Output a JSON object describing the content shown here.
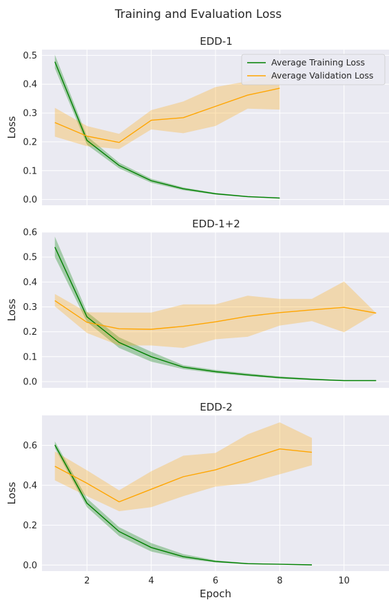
{
  "figure": {
    "title": "Training and Evaluation Loss",
    "xlabel": "Epoch"
  },
  "legend": {
    "location": "top-right of first panel",
    "entries": [
      "Average Training Loss",
      "Average Validation Loss"
    ]
  },
  "colors": {
    "background": "#eaeaf2",
    "grid": "#ffffff",
    "training": "#008000",
    "validation": "#ffa500"
  },
  "chart_data": [
    {
      "type": "line",
      "title": "EDD-1",
      "xlabel": "",
      "ylabel": "Loss",
      "xlim": [
        0.6,
        11.4
      ],
      "ylim": [
        -0.02,
        0.52
      ],
      "xticks": [
        2,
        4,
        6,
        8,
        10
      ],
      "xtick_labels_shown": false,
      "yticks": [
        0.0,
        0.1,
        0.2,
        0.3,
        0.4,
        0.5
      ],
      "ytick_labels": [
        "0.0",
        "0.1",
        "0.2",
        "0.3",
        "0.4",
        "0.5"
      ],
      "grid": true,
      "legend": "top-right",
      "series": [
        {
          "name": "Average Training Loss",
          "x": [
            1,
            2,
            3,
            4,
            5,
            6,
            7,
            8
          ],
          "y": [
            0.478,
            0.205,
            0.118,
            0.065,
            0.037,
            0.02,
            0.01,
            0.005
          ],
          "band_low": [
            0.455,
            0.19,
            0.108,
            0.058,
            0.032,
            0.017,
            0.008,
            0.004
          ],
          "band_high": [
            0.502,
            0.22,
            0.128,
            0.072,
            0.042,
            0.023,
            0.012,
            0.006
          ]
        },
        {
          "name": "Average Validation Loss",
          "x": [
            1,
            2,
            3,
            4,
            5,
            6,
            7,
            8
          ],
          "y": [
            0.267,
            0.22,
            0.198,
            0.275,
            0.284,
            0.323,
            0.362,
            0.386
          ],
          "band_low": [
            0.218,
            0.185,
            0.175,
            0.243,
            0.23,
            0.255,
            0.315,
            0.312
          ],
          "band_high": [
            0.318,
            0.255,
            0.228,
            0.31,
            0.34,
            0.39,
            0.41,
            0.442
          ]
        }
      ]
    },
    {
      "type": "line",
      "title": "EDD-1+2",
      "xlabel": "",
      "ylabel": "Loss",
      "xlim": [
        0.6,
        11.4
      ],
      "ylim": [
        -0.025,
        0.6
      ],
      "xticks": [
        2,
        4,
        6,
        8,
        10
      ],
      "xtick_labels_shown": false,
      "yticks": [
        0.0,
        0.1,
        0.2,
        0.3,
        0.4,
        0.5,
        0.6
      ],
      "ytick_labels": [
        "0.0",
        "0.1",
        "0.2",
        "0.3",
        "0.4",
        "0.5",
        "0.6"
      ],
      "grid": true,
      "series": [
        {
          "name": "Average Training Loss",
          "x": [
            1,
            2,
            3,
            4,
            5,
            6,
            7,
            8,
            9,
            10,
            11
          ],
          "y": [
            0.54,
            0.26,
            0.157,
            0.1,
            0.058,
            0.04,
            0.027,
            0.016,
            0.009,
            0.004,
            0.004
          ],
          "band_low": [
            0.5,
            0.24,
            0.135,
            0.08,
            0.05,
            0.034,
            0.022,
            0.012,
            0.006,
            0.003,
            0.003
          ],
          "band_high": [
            0.582,
            0.28,
            0.178,
            0.12,
            0.066,
            0.047,
            0.033,
            0.021,
            0.013,
            0.005,
            0.005
          ]
        },
        {
          "name": "Average Validation Loss",
          "x": [
            1,
            2,
            3,
            4,
            5,
            6,
            7,
            8,
            9,
            10,
            11
          ],
          "y": [
            0.325,
            0.238,
            0.212,
            0.21,
            0.222,
            0.24,
            0.262,
            0.277,
            0.288,
            0.298,
            0.275
          ],
          "band_low": [
            0.302,
            0.195,
            0.145,
            0.145,
            0.135,
            0.17,
            0.18,
            0.225,
            0.243,
            0.198,
            0.275
          ],
          "band_high": [
            0.352,
            0.278,
            0.277,
            0.277,
            0.31,
            0.31,
            0.345,
            0.332,
            0.332,
            0.402,
            0.275
          ]
        }
      ]
    },
    {
      "type": "line",
      "title": "EDD-2",
      "xlabel": "Epoch",
      "ylabel": "Loss",
      "xlim": [
        0.6,
        11.4
      ],
      "ylim": [
        -0.03,
        0.75
      ],
      "xticks": [
        2,
        4,
        6,
        8,
        10
      ],
      "xtick_labels": [
        "2",
        "4",
        "6",
        "8",
        "10"
      ],
      "yticks": [
        0.0,
        0.2,
        0.4,
        0.6
      ],
      "ytick_labels": [
        "0.0",
        "0.2",
        "0.4",
        "0.6"
      ],
      "grid": true,
      "series": [
        {
          "name": "Average Training Loss",
          "x": [
            1,
            2,
            3,
            4,
            5,
            6,
            7,
            8,
            9
          ],
          "y": [
            0.602,
            0.31,
            0.168,
            0.088,
            0.042,
            0.018,
            0.007,
            0.004,
            0.001
          ],
          "band_low": [
            0.585,
            0.29,
            0.145,
            0.068,
            0.032,
            0.013,
            0.005,
            0.003,
            0.0
          ],
          "band_high": [
            0.62,
            0.335,
            0.19,
            0.11,
            0.055,
            0.024,
            0.01,
            0.006,
            0.002
          ]
        },
        {
          "name": "Average Validation Loss",
          "x": [
            1,
            2,
            3,
            4,
            5,
            6,
            7,
            8,
            9
          ],
          "y": [
            0.495,
            0.41,
            0.317,
            0.38,
            0.443,
            0.477,
            0.53,
            0.582,
            0.565
          ],
          "band_low": [
            0.425,
            0.345,
            0.27,
            0.29,
            0.345,
            0.393,
            0.41,
            0.455,
            0.5
          ],
          "band_high": [
            0.57,
            0.475,
            0.375,
            0.47,
            0.548,
            0.562,
            0.655,
            0.715,
            0.637
          ]
        }
      ]
    }
  ]
}
